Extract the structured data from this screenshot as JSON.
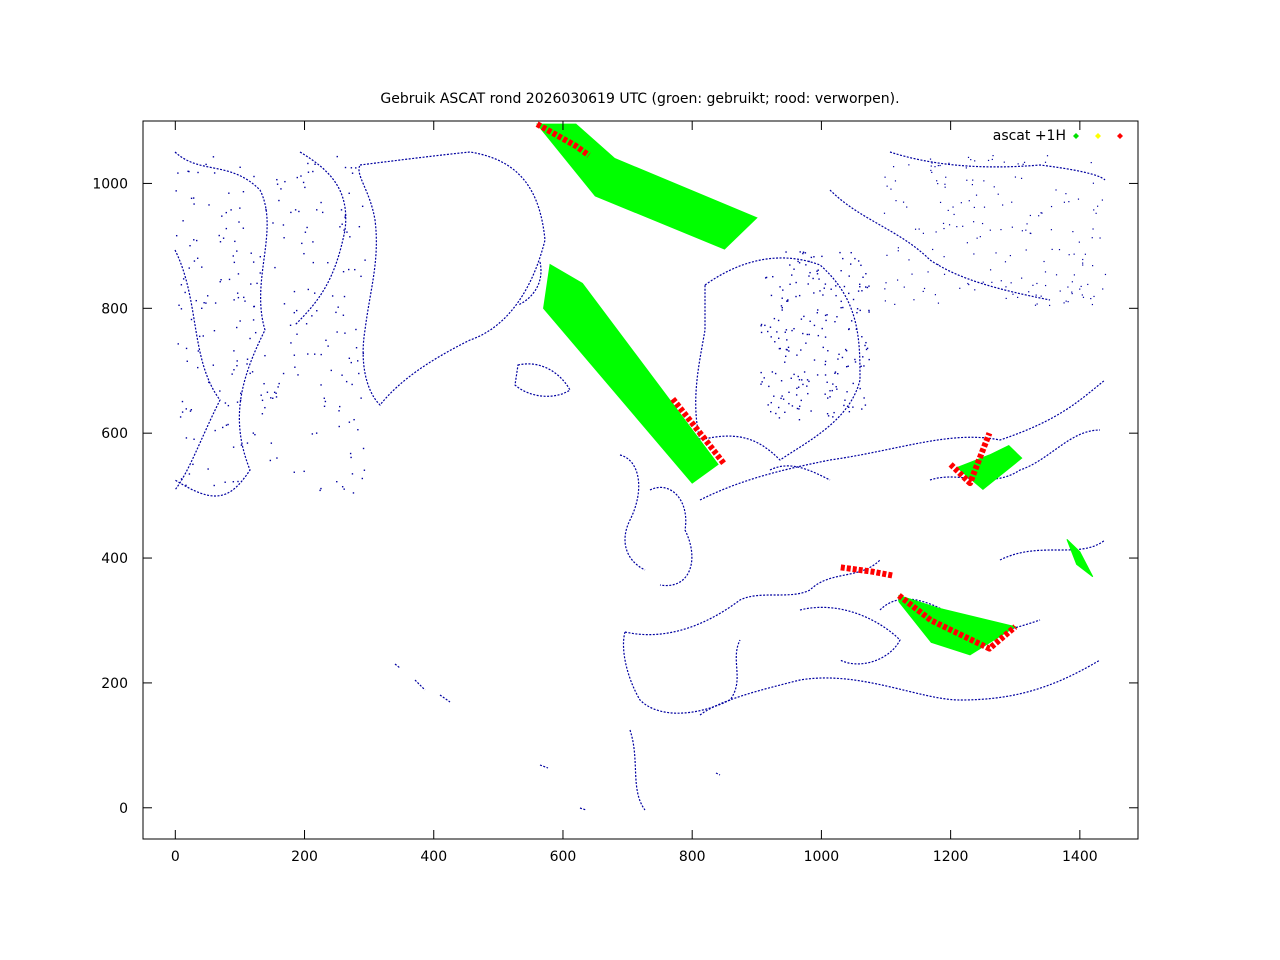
{
  "chart_data": {
    "type": "scatter",
    "title": "Gebruik ASCAT rond 2026030619 UTC (groen: gebruikt; rood: verworpen).",
    "xlabel": "",
    "ylabel": "",
    "xlim": [
      -50,
      1490
    ],
    "ylim": [
      -50,
      1100
    ],
    "x_ticks": [
      0,
      200,
      400,
      600,
      800,
      1000,
      1200,
      1400
    ],
    "y_ticks": [
      0,
      200,
      400,
      600,
      800,
      1000
    ],
    "grid": false,
    "legend_position": "top-right",
    "legend": {
      "label": "ascat +1H",
      "colors": [
        "#00e000",
        "#ffff00",
        "#ff0000"
      ]
    },
    "coastline_color": "#0000a0",
    "series": [
      {
        "name": "gebruikt",
        "color": "#00ff00",
        "swaths": [
          {
            "corners": [
              [
                560,
                1095
              ],
              [
                620,
                1095
              ],
              [
                680,
                1040
              ],
              [
                900,
                945
              ],
              [
                850,
                895
              ],
              [
                650,
                980
              ]
            ]
          },
          {
            "corners": [
              [
                570,
                800
              ],
              [
                580,
                870
              ],
              [
                630,
                840
              ],
              [
                840,
                550
              ],
              [
                800,
                520
              ],
              [
                570,
                800
              ]
            ]
          },
          {
            "corners": [
              [
                1210,
                545
              ],
              [
                1250,
                510
              ],
              [
                1310,
                560
              ],
              [
                1290,
                580
              ],
              [
                1260,
                565
              ]
            ]
          },
          {
            "corners": [
              [
                1120,
                340
              ],
              [
                1180,
                320
              ],
              [
                1300,
                290
              ],
              [
                1230,
                245
              ],
              [
                1170,
                265
              ],
              [
                1120,
                330
              ]
            ]
          },
          {
            "corners": [
              [
                1380,
                430
              ],
              [
                1395,
                390
              ],
              [
                1420,
                370
              ],
              [
                1400,
                410
              ]
            ]
          }
        ]
      },
      {
        "name": "verworpen",
        "color": "#ff0000",
        "swaths": [
          {
            "corners": [
              [
                560,
                1095
              ],
              [
                620,
                1060
              ],
              [
                640,
                1045
              ]
            ]
          },
          {
            "corners": [
              [
                770,
                655
              ],
              [
                820,
                590
              ],
              [
                850,
                550
              ]
            ]
          },
          {
            "corners": [
              [
                1030,
                385
              ],
              [
                1080,
                378
              ],
              [
                1110,
                372
              ]
            ]
          },
          {
            "corners": [
              [
                1200,
                550
              ],
              [
                1230,
                520
              ],
              [
                1260,
                600
              ]
            ]
          },
          {
            "corners": [
              [
                1120,
                340
              ],
              [
                1170,
                300
              ],
              [
                1260,
                255
              ],
              [
                1300,
                290
              ]
            ]
          }
        ]
      }
    ]
  }
}
